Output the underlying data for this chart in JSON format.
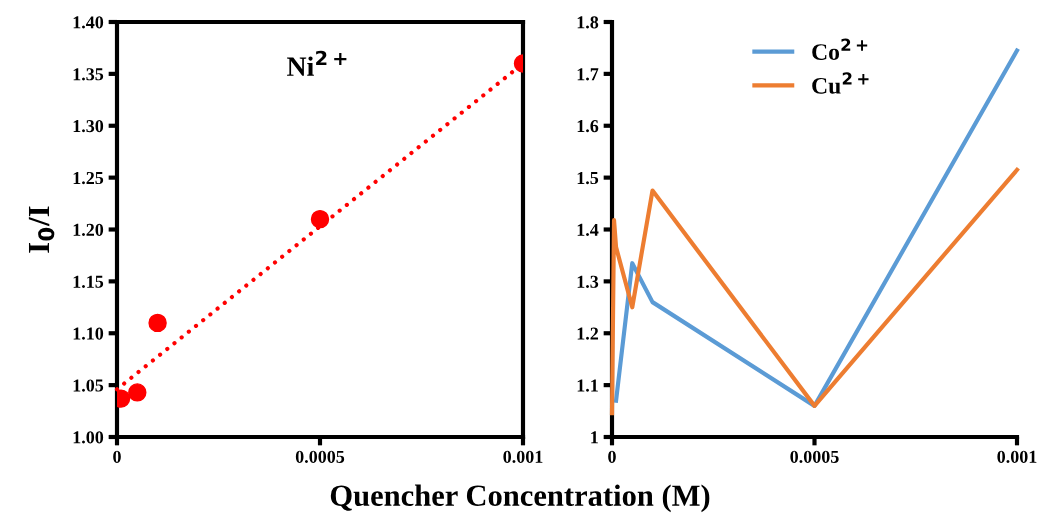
{
  "chart_data": [
    {
      "type": "scatter",
      "xlabel": "Quencher Concentration (M)",
      "ylabel": "I$_{0}$/I",
      "annotations": [
        "Ni$^{2+}$"
      ],
      "x": [
        1e-05,
        5e-05,
        0.0001,
        0.0005,
        0.001
      ],
      "series": [
        {
          "type": "scatter",
          "color": "#ff0000",
          "marker": "circle",
          "values": [
            1.037,
            1.043,
            1.11,
            1.21,
            1.36
          ]
        },
        {
          "type": "line",
          "color": "#ff0000",
          "line_style": "dotted",
          "marker": "none",
          "x": [
            0,
            0.001
          ],
          "values": [
            1.046,
            1.36
          ]
        }
      ],
      "xlim": [
        0,
        0.001
      ],
      "xticks": [
        0,
        0.0005,
        0.001
      ],
      "ylim": [
        1.0,
        1.4
      ],
      "yticks": [
        {
          "value": 1.0,
          "label": "1.00"
        },
        {
          "value": 1.05,
          "label": "1.05"
        },
        {
          "value": 1.1,
          "label": "1.10"
        },
        {
          "value": 1.15,
          "label": "1.15"
        },
        {
          "value": 1.2,
          "label": "1.20"
        },
        {
          "value": 1.25,
          "label": "1.25"
        },
        {
          "value": 1.3,
          "label": "1.30"
        },
        {
          "value": 1.35,
          "label": "1.35"
        },
        {
          "value": 1.4,
          "label": "1.40"
        }
      ],
      "grid": false,
      "legend": false
    },
    {
      "type": "line",
      "series": [
        {
          "name": "Co$^{2+}$",
          "color": "#5b9bd5",
          "x": [
            1e-05,
            5e-05,
            0.0001,
            0.0005,
            0.001
          ],
          "values": [
            1.07,
            1.335,
            1.26,
            1.06,
            1.745
          ]
        },
        {
          "name": "Cu$^{2+}$",
          "color": "#ed7d31",
          "x": [
            0,
            5e-06,
            1e-05,
            5e-05,
            0.0001,
            0.0005,
            0.001
          ],
          "values": [
            1.046,
            1.418,
            1.366,
            1.25,
            1.475,
            1.06,
            1.515
          ]
        }
      ],
      "xlim": [
        0,
        0.001
      ],
      "xticks": [
        0,
        0.0005,
        0.001
      ],
      "ylim": [
        1,
        1.8
      ],
      "yticks": [
        1,
        1.1,
        1.2,
        1.3,
        1.4,
        1.5,
        1.6,
        1.7,
        1.8
      ],
      "grid": false,
      "legend": "top",
      "marker": "none",
      "line_style": "solid"
    }
  ]
}
